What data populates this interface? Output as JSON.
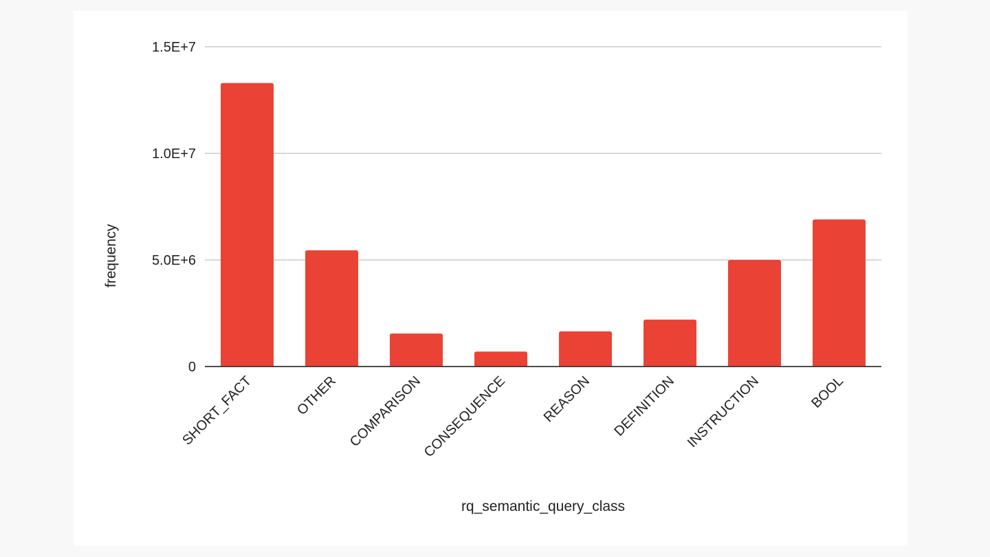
{
  "chart_data": {
    "type": "bar",
    "title": "",
    "xlabel": "rq_semantic_query_class",
    "ylabel": "frequency",
    "categories": [
      "SHORT_FACT",
      "OTHER",
      "COMPARISON",
      "CONSEQUENCE",
      "REASON",
      "DEFINITION",
      "INSTRUCTION",
      "BOOL"
    ],
    "values": [
      13300000,
      5450000,
      1550000,
      700000,
      1650000,
      2200000,
      5000000,
      6900000
    ],
    "ylim": [
      0,
      15000000
    ],
    "yticks": [
      {
        "value": 0,
        "label": "0"
      },
      {
        "value": 5000000,
        "label": "5.0E+6"
      },
      {
        "value": 10000000,
        "label": "1.0E+7"
      },
      {
        "value": 15000000,
        "label": "1.5E+7"
      }
    ],
    "grid": true,
    "legend": "none",
    "colors": {
      "bar": "#ea4335",
      "grid": "#cccccc",
      "baseline": "#333333",
      "text": "#222222",
      "card": "#ffffff",
      "background": "#f8f8f8"
    }
  }
}
